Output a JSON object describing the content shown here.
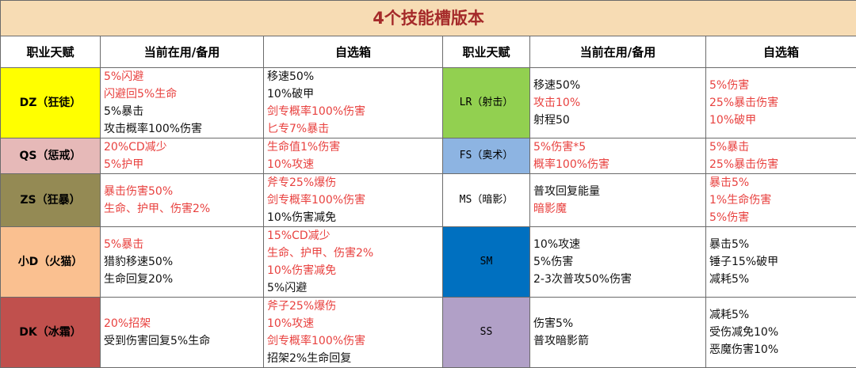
{
  "title": "4个技能槽版本",
  "headers": [
    "职业天赋",
    "当前在用/备用",
    "自选箱",
    "职业天赋",
    "当前在用/备用",
    "自选箱"
  ],
  "colors": {
    "title_bg": "#f7dcb4",
    "red_text": "#e8413f",
    "black_text": "#111111"
  },
  "rows": [
    {
      "left": {
        "talent": "DZ（狂徒）",
        "bg": "#ffff00",
        "current": [
          {
            "t": "5%闪避",
            "red": true
          },
          {
            "t": "闪避回5%生命",
            "red": true
          },
          {
            "t": "5%暴击",
            "red": false
          },
          {
            "t": "攻击概率100%伤害",
            "red": false
          }
        ],
        "box": [
          {
            "t": "移速50%",
            "red": false
          },
          {
            "t": "10%破甲",
            "red": false
          },
          {
            "t": "剑专概率100%伤害",
            "red": true
          },
          {
            "t": "匕专7%暴击",
            "red": true
          }
        ]
      },
      "right": {
        "talent": "LR（射击）",
        "bg": "#92d050",
        "current": [
          {
            "t": "移速50%",
            "red": false
          },
          {
            "t": "攻击10%",
            "red": true
          },
          {
            "t": "射程50",
            "red": false
          }
        ],
        "box": [
          {
            "t": "5%伤害",
            "red": true
          },
          {
            "t": "25%暴击伤害",
            "red": true
          },
          {
            "t": "10%破甲",
            "red": true
          }
        ]
      }
    },
    {
      "left": {
        "talent": "QS（惩戒）",
        "bg": "#e6b9b8",
        "current": [
          {
            "t": "20%CD减少",
            "red": true
          },
          {
            "t": "5%护甲",
            "red": true
          }
        ],
        "box": [
          {
            "t": "生命值1%伤害",
            "red": true
          },
          {
            "t": "10%攻速",
            "red": true
          }
        ]
      },
      "right": {
        "talent": "FS（奥术）",
        "bg": "#8db4e2",
        "current": [
          {
            "t": "5%伤害*5",
            "red": true
          },
          {
            "t": "概率100%伤害",
            "red": true
          }
        ],
        "box": [
          {
            "t": "5%暴击",
            "red": true
          },
          {
            "t": "25%暴击伤害",
            "red": true
          }
        ]
      }
    },
    {
      "left": {
        "talent": "ZS（狂暴）",
        "bg": "#948a54",
        "current": [
          {
            "t": "暴击伤害50%",
            "red": true
          },
          {
            "t": "生命、护甲、伤害2%",
            "red": true
          }
        ],
        "box": [
          {
            "t": "斧专25%爆伤",
            "red": true
          },
          {
            "t": "剑专概率100%伤害",
            "red": true
          },
          {
            "t": "10%伤害减免",
            "red": false
          }
        ]
      },
      "right": {
        "talent": "MS（暗影）",
        "bg": "#ffffff",
        "current": [
          {
            "t": "普攻回复能量",
            "red": false
          },
          {
            "t": "暗影魔",
            "red": true
          }
        ],
        "box": [
          {
            "t": "暴击5%",
            "red": true
          },
          {
            "t": "1%生命伤害",
            "red": true
          },
          {
            "t": "5%伤害",
            "red": true
          }
        ]
      }
    },
    {
      "left": {
        "talent": "小D（火猫）",
        "bg": "#fac090",
        "current": [
          {
            "t": "5%暴击",
            "red": true
          },
          {
            "t": "猎豹移速50%",
            "red": false
          },
          {
            "t": "生命回复20%",
            "red": false
          }
        ],
        "box": [
          {
            "t": "15%CD减少",
            "red": true
          },
          {
            "t": "生命、护甲、伤害2%",
            "red": true
          },
          {
            "t": "10%伤害减免",
            "red": true
          },
          {
            "t": "5%闪避",
            "red": false
          }
        ]
      },
      "right": {
        "talent": "SM",
        "bg": "#0070c0",
        "current": [
          {
            "t": "10%攻速",
            "red": false
          },
          {
            "t": "5%伤害",
            "red": false
          },
          {
            "t": "2-3次普攻50%伤害",
            "red": false
          }
        ],
        "box": [
          {
            "t": "暴击5%",
            "red": false
          },
          {
            "t": "锤子15%破甲",
            "red": false
          },
          {
            "t": "减耗5%",
            "red": false
          }
        ]
      }
    },
    {
      "left": {
        "talent": "DK（冰霜）",
        "bg": "#c0504d",
        "current": [
          {
            "t": "20%招架",
            "red": true
          },
          {
            "t": "受到伤害回复5%生命",
            "red": false
          }
        ],
        "box": [
          {
            "t": "斧子25%爆伤",
            "red": true
          },
          {
            "t": "10%攻速",
            "red": true
          },
          {
            "t": "剑专概率100%伤害",
            "red": true
          },
          {
            "t": "招架2%生命回复",
            "red": false
          }
        ]
      },
      "right": {
        "talent": "SS",
        "bg": "#b1a0c7",
        "current": [
          {
            "t": "伤害5%",
            "red": false
          },
          {
            "t": "普攻暗影箭",
            "red": false
          }
        ],
        "box": [
          {
            "t": "减耗5%",
            "red": false
          },
          {
            "t": "受伤减免10%",
            "red": false
          },
          {
            "t": "恶魔伤害10%",
            "red": false
          }
        ]
      }
    }
  ]
}
